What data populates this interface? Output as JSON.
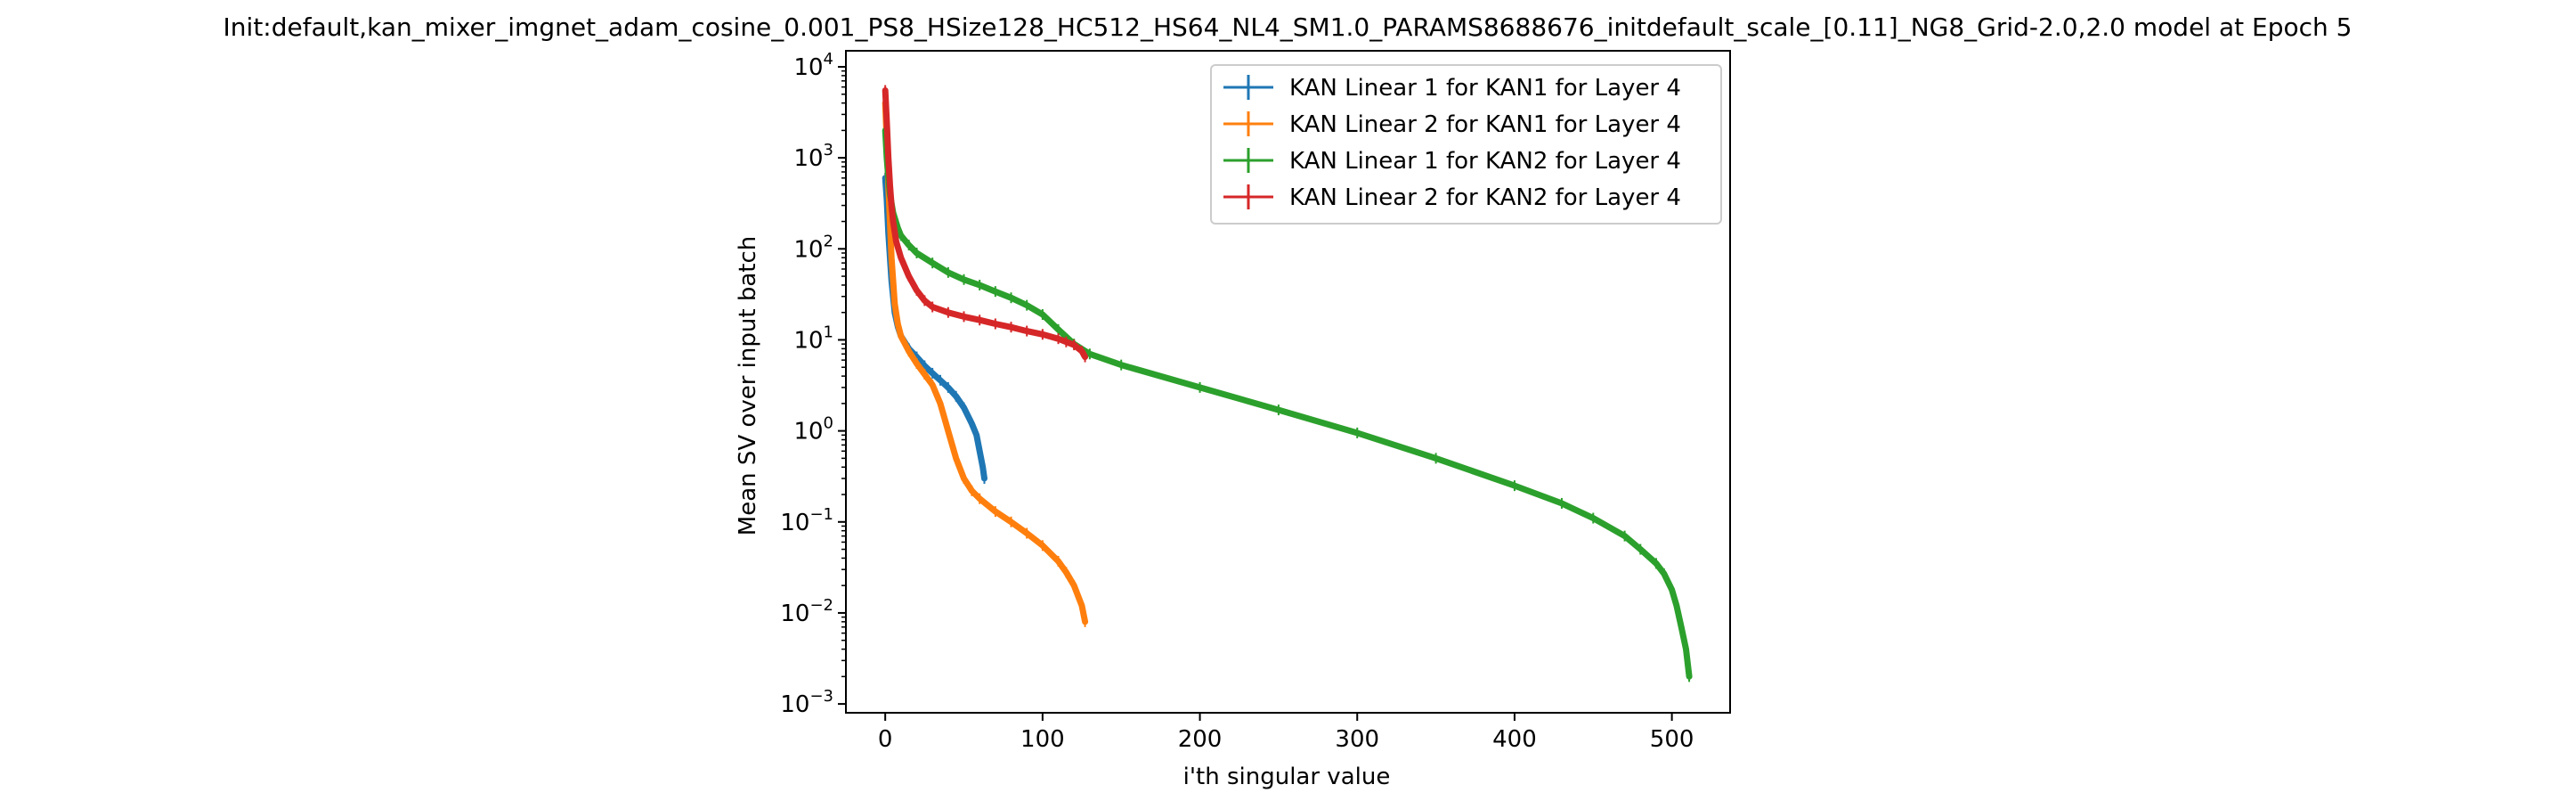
{
  "chart_data": {
    "type": "line",
    "title": "Init:default,kan_mixer_imgnet_adam_cosine_0.001_PS8_HSize128_HC512_HS64_NL4_SM1.0_PARAMS8688676_initdefault_scale_[0.11]_NG8_Grid-2.0,2.0 model at Epoch 5",
    "xlabel": "i'th singular value",
    "ylabel": "Mean SV over input batch",
    "xlim": [
      -25,
      537
    ],
    "ylim": [
      0.0008,
      15000
    ],
    "yscale": "log",
    "grid": false,
    "legend_position": "upper right",
    "x_ticks": [
      0,
      100,
      200,
      300,
      400,
      500
    ],
    "y_ticks": [
      {
        "value": 0.001,
        "base": "10",
        "exp": "−3"
      },
      {
        "value": 0.01,
        "base": "10",
        "exp": "−2"
      },
      {
        "value": 0.1,
        "base": "10",
        "exp": "−1"
      },
      {
        "value": 1,
        "base": "10",
        "exp": "0"
      },
      {
        "value": 10,
        "base": "10",
        "exp": "1"
      },
      {
        "value": 100,
        "base": "10",
        "exp": "2"
      },
      {
        "value": 1000,
        "base": "10",
        "exp": "3"
      },
      {
        "value": 10000,
        "base": "10",
        "exp": "4"
      }
    ],
    "series": [
      {
        "name": "KAN Linear 1 for KAN1 for Layer 4",
        "color": "#1f77b4",
        "x": [
          0,
          1,
          2,
          3,
          4,
          5,
          6,
          8,
          10,
          15,
          20,
          25,
          30,
          35,
          40,
          45,
          50,
          55,
          58,
          60,
          62,
          63
        ],
        "y": [
          600,
          350,
          150,
          80,
          45,
          30,
          20,
          14,
          11,
          8,
          6.5,
          5.2,
          4.3,
          3.6,
          3.0,
          2.4,
          1.8,
          1.2,
          0.9,
          0.6,
          0.4,
          0.3
        ]
      },
      {
        "name": "KAN Linear 2 for KAN1 for Layer 4",
        "color": "#ff7f0e",
        "x": [
          0,
          1,
          2,
          3,
          4,
          5,
          6,
          8,
          10,
          15,
          20,
          25,
          30,
          35,
          40,
          45,
          50,
          55,
          60,
          70,
          80,
          90,
          100,
          110,
          115,
          120,
          125,
          127
        ],
        "y": [
          4000,
          1500,
          500,
          200,
          80,
          45,
          25,
          15,
          11,
          7.5,
          5.5,
          4.2,
          3.2,
          2.0,
          1.0,
          0.5,
          0.3,
          0.22,
          0.18,
          0.13,
          0.1,
          0.075,
          0.055,
          0.037,
          0.028,
          0.02,
          0.012,
          0.008
        ]
      },
      {
        "name": "KAN Linear 1 for KAN2 for Layer 4",
        "color": "#2ca02c",
        "x": [
          0,
          1,
          2,
          3,
          5,
          8,
          10,
          15,
          20,
          30,
          40,
          50,
          60,
          70,
          80,
          90,
          100,
          110,
          120,
          130,
          150,
          200,
          250,
          300,
          350,
          400,
          430,
          450,
          470,
          480,
          490,
          495,
          500,
          503,
          506,
          509,
          511
        ],
        "y": [
          2000,
          1000,
          600,
          400,
          250,
          170,
          140,
          110,
          90,
          70,
          55,
          46,
          40,
          34,
          29,
          24,
          19,
          13,
          9,
          7,
          5.3,
          3.0,
          1.7,
          0.95,
          0.5,
          0.25,
          0.16,
          0.11,
          0.07,
          0.05,
          0.035,
          0.027,
          0.018,
          0.012,
          0.007,
          0.004,
          0.002
        ]
      },
      {
        "name": "KAN Linear 2 for KAN2 for Layer 4",
        "color": "#d62728",
        "x": [
          0,
          1,
          2,
          3,
          4,
          5,
          7,
          10,
          15,
          20,
          25,
          30,
          40,
          50,
          60,
          70,
          80,
          90,
          100,
          110,
          115,
          120,
          125,
          127
        ],
        "y": [
          5500,
          2500,
          1000,
          500,
          300,
          200,
          120,
          80,
          50,
          35,
          27,
          23,
          20,
          18,
          16.5,
          15,
          13.8,
          12.5,
          11.5,
          10.3,
          9.5,
          8.8,
          7.5,
          6.5
        ]
      }
    ]
  }
}
